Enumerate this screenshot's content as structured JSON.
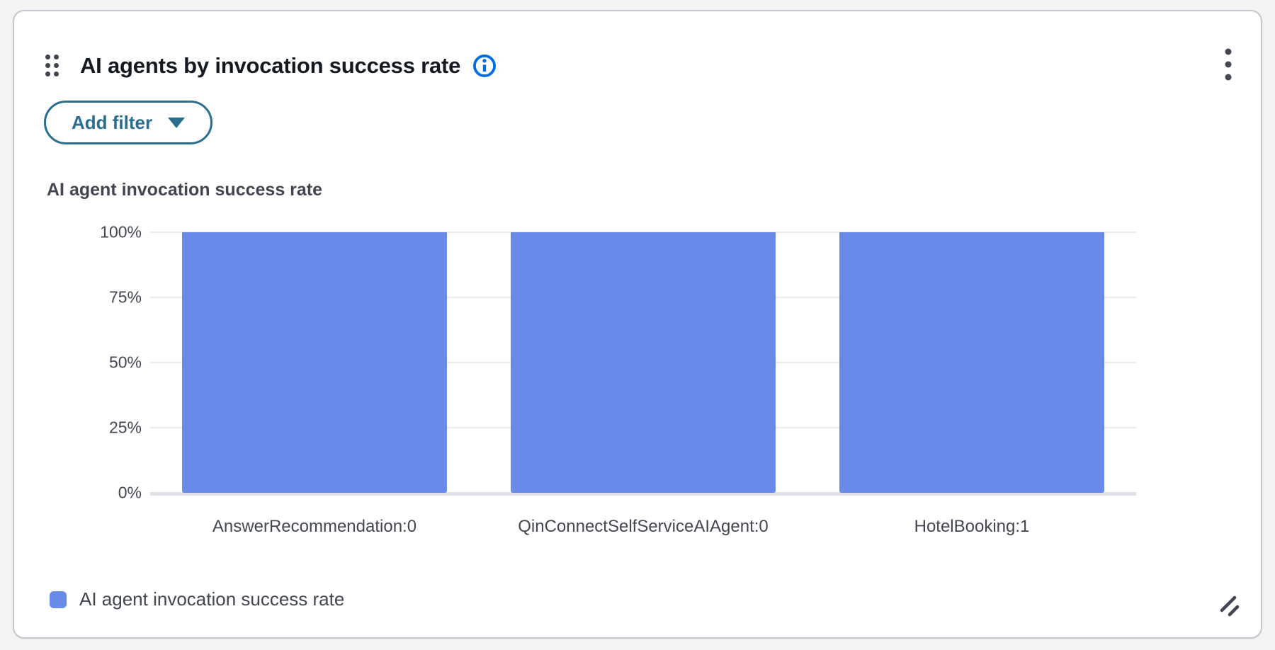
{
  "widget": {
    "title": "AI agents by invocation success rate",
    "add_filter_label": "Add filter"
  },
  "chart_data": {
    "type": "bar",
    "title": "AI agent invocation success rate",
    "categories": [
      "AnswerRecommendation:0",
      "QinConnectSelfServiceAIAgent:0",
      "HotelBooking:1"
    ],
    "values": [
      100,
      100,
      100
    ],
    "value_unit": "%",
    "ylim": [
      0,
      100
    ],
    "yticks": [
      "100%",
      "75%",
      "50%",
      "25%",
      "0%"
    ],
    "grid": true,
    "legend": [
      "AI agent invocation success rate"
    ],
    "legend_position": "bottom",
    "color": "#688AE8"
  },
  "colors": {
    "info_icon": "#006ce0",
    "filter_button": "#2a6e8f",
    "title_text": "#131a22",
    "axis_text": "#424650",
    "gridline": "#e9ebed",
    "baseline": "#dfe1e6",
    "card_border": "#c3c8cf",
    "page_background": "#f4f4f5"
  }
}
